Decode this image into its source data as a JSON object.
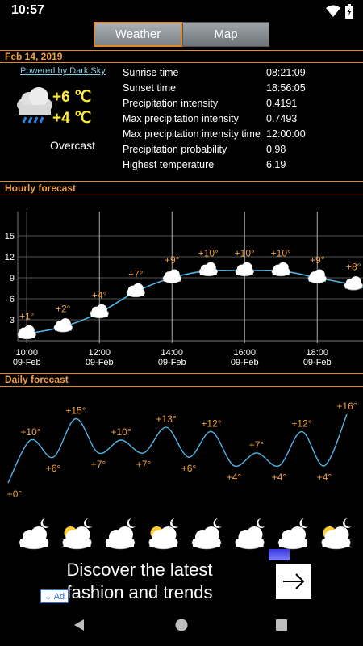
{
  "status": {
    "time": "10:57",
    "icons": [
      "wifi-icon",
      "battery-charging-icon"
    ]
  },
  "tabs": [
    {
      "label": "Weather",
      "active": true
    },
    {
      "label": "Map",
      "active": false
    }
  ],
  "date": "Feb 14, 2019",
  "powered_by": "Powered by Dark Sky",
  "current": {
    "high": "+6 ℃",
    "low": "+4 ℃",
    "condition": "Overcast",
    "icon": "cloud-rain-icon"
  },
  "details": [
    {
      "label": "Sunrise time",
      "value": "08:21:09"
    },
    {
      "label": "Sunset time",
      "value": "18:56:05"
    },
    {
      "label": "Precipitation intensity",
      "value": "0.4191"
    },
    {
      "label": "Max precipitation intensity",
      "value": "0.7493"
    },
    {
      "label": "Max precipitation intensity time",
      "value": "12:00:00"
    },
    {
      "label": "Precipitation probability",
      "value": "0.98"
    },
    {
      "label": "Highest temperature",
      "value": "6.19"
    }
  ],
  "hourly_title": "Hourly forecast",
  "daily_title": "Daily forecast",
  "chart_data": [
    {
      "type": "line",
      "title": "Hourly forecast",
      "ylim": [
        0,
        18
      ],
      "yticks": [
        "3",
        "6",
        "9",
        "12",
        "15"
      ],
      "x_ticks": [
        {
          "time": "10:00",
          "date": "09-Feb"
        },
        {
          "time": "12:00",
          "date": "09-Feb"
        },
        {
          "time": "14:00",
          "date": "09-Feb"
        },
        {
          "time": "16:00",
          "date": "09-Feb"
        },
        {
          "time": "18:00",
          "date": "09-Feb"
        }
      ],
      "x": [
        10,
        11,
        12,
        13,
        14,
        15,
        16,
        17,
        18,
        19
      ],
      "values": [
        1,
        2,
        4,
        7,
        9,
        10,
        10,
        10,
        9,
        8
      ],
      "labels": [
        "+1°",
        "+2°",
        "+4°",
        "+7°",
        "+9°",
        "+10°",
        "+10°",
        "+10°",
        "+9°",
        "+8°"
      ],
      "grid": true
    },
    {
      "type": "line",
      "title": "Daily forecast",
      "values": [
        0,
        10,
        6,
        15,
        7,
        10,
        7,
        13,
        6,
        12,
        4,
        7,
        4,
        12,
        4,
        16
      ],
      "labels": [
        "+0°",
        "+10°",
        "+6°",
        "+15°",
        "+7°",
        "+10°",
        "+7°",
        "+13°",
        "+6°",
        "+12°",
        "+4°",
        "+7°",
        "+4°",
        "+12°",
        "+4°",
        "+16°"
      ],
      "day_icons": [
        "moon-cloud-icon",
        "sun-cloud-moon-icon",
        "moon-cloud-icon",
        "sun-cloud-moon-icon",
        "moon-cloud-icon",
        "moon-cloud-icon",
        "moon-cloud-rain-icon",
        "sun-cloud-moon-icon"
      ]
    }
  ],
  "ad": {
    "text_line1": "Discover the latest",
    "text_line2": "fashion and trends",
    "badge": "Ad",
    "arrow": "→"
  },
  "nav": {
    "icons": [
      "back-icon",
      "home-icon",
      "recents-icon"
    ]
  },
  "colors": {
    "accent": "#e08a2c",
    "temp_label": "#f0a040",
    "line": "#4fb6e8",
    "temp_now": "#ffeb3b"
  }
}
